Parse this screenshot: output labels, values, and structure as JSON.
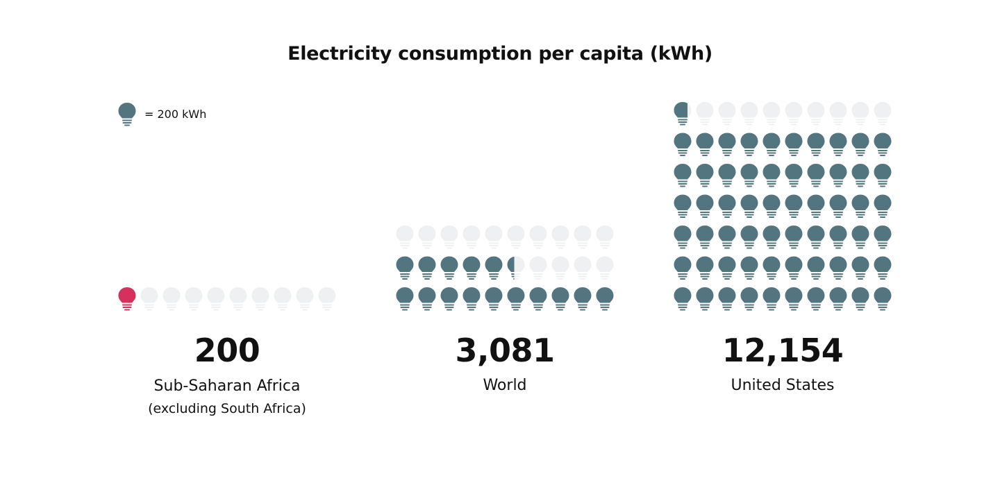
{
  "chart_data": {
    "type": "pictogram",
    "title": "Electricity consumption per capita (kWh)",
    "unit_label": "= 200 kWh",
    "unit_value": 200,
    "icons_per_row": 10,
    "colors": {
      "filled": "#537580",
      "highlight": "#d6305e",
      "empty": "#eef0f2"
    },
    "series": [
      {
        "name": "Sub-Saharan Africa",
        "subname": "(excluding South Africa)",
        "value": 200,
        "value_label": "200",
        "rows": 1,
        "highlight": true
      },
      {
        "name": "World",
        "subname": "",
        "value": 3081,
        "value_label": "3,081",
        "rows": 3,
        "highlight": false
      },
      {
        "name": "United States",
        "subname": "",
        "value": 12154,
        "value_label": "12,154",
        "rows": 7,
        "highlight": false
      }
    ]
  }
}
